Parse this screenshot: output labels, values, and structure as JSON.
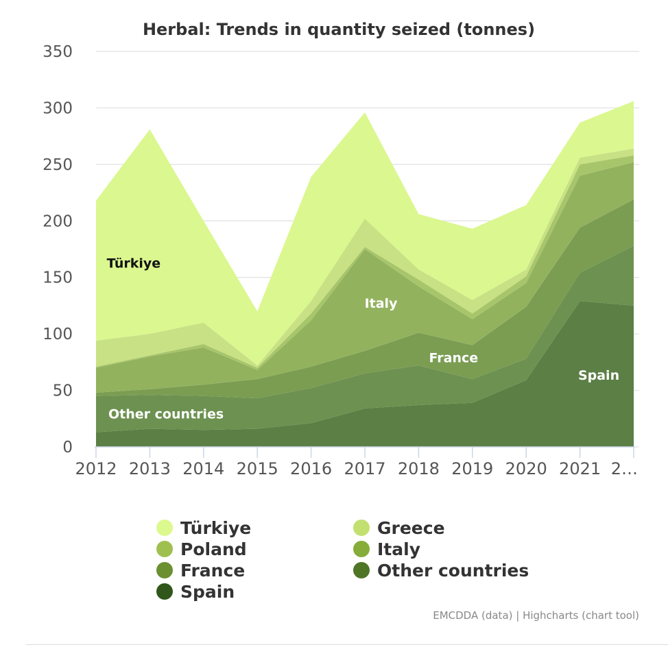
{
  "chart_data": {
    "type": "area",
    "stacked": true,
    "title": "Herbal: Trends in quantity seized (tonnes)",
    "x": [
      "2012",
      "2013",
      "2014",
      "2015",
      "2016",
      "2017",
      "2018",
      "2019",
      "2020",
      "2021",
      "2…"
    ],
    "ylim": [
      0,
      350
    ],
    "yticks": [
      0,
      50,
      100,
      150,
      200,
      250,
      300,
      350
    ],
    "grid": true,
    "legend_position": "bottom",
    "series": [
      {
        "name": "Spain",
        "color": "#5b7f45",
        "values": [
          13,
          16,
          15,
          16,
          21,
          34,
          37,
          39,
          59,
          129,
          125
        ]
      },
      {
        "name": "Other countries",
        "color": "#6d9150",
        "values": [
          32,
          30,
          30,
          27,
          31,
          31,
          35,
          21,
          19,
          25,
          53
        ]
      },
      {
        "name": "France",
        "color": "#7a9d52",
        "values": [
          3,
          5,
          10,
          17,
          19,
          20,
          29,
          30,
          46,
          40,
          41
        ]
      },
      {
        "name": "Italy",
        "color": "#93b25e",
        "values": [
          22,
          29,
          33,
          8,
          41,
          90,
          41,
          23,
          21,
          46,
          33
        ]
      },
      {
        "name": "Poland",
        "color": "#a7c56a",
        "values": [
          1,
          1,
          3,
          2,
          6,
          2,
          6,
          5,
          6,
          10,
          6
        ]
      },
      {
        "name": "Greece",
        "color": "#c8e184",
        "values": [
          23,
          19,
          19,
          2,
          11,
          25,
          9,
          12,
          6,
          6,
          6
        ]
      },
      {
        "name": "Türkiye",
        "color": "#dbf78f",
        "values": [
          124,
          181,
          90,
          48,
          110,
          94,
          49,
          63,
          57,
          31,
          42
        ]
      }
    ],
    "area_labels": [
      "Türkiye",
      "Italy",
      "France",
      "Spain",
      "Other countries"
    ],
    "legend": [
      {
        "name": "Türkiye",
        "color": "#dcf98e"
      },
      {
        "name": "Greece",
        "color": "#c2e070"
      },
      {
        "name": "Poland",
        "color": "#9fc04f"
      },
      {
        "name": "Italy",
        "color": "#86ad39"
      },
      {
        "name": "France",
        "color": "#6b9030"
      },
      {
        "name": "Other countries",
        "color": "#4f7526"
      },
      {
        "name": "Spain",
        "color": "#30561b"
      }
    ],
    "credits": "EMCDDA (data) | Highcharts (chart tool)"
  }
}
